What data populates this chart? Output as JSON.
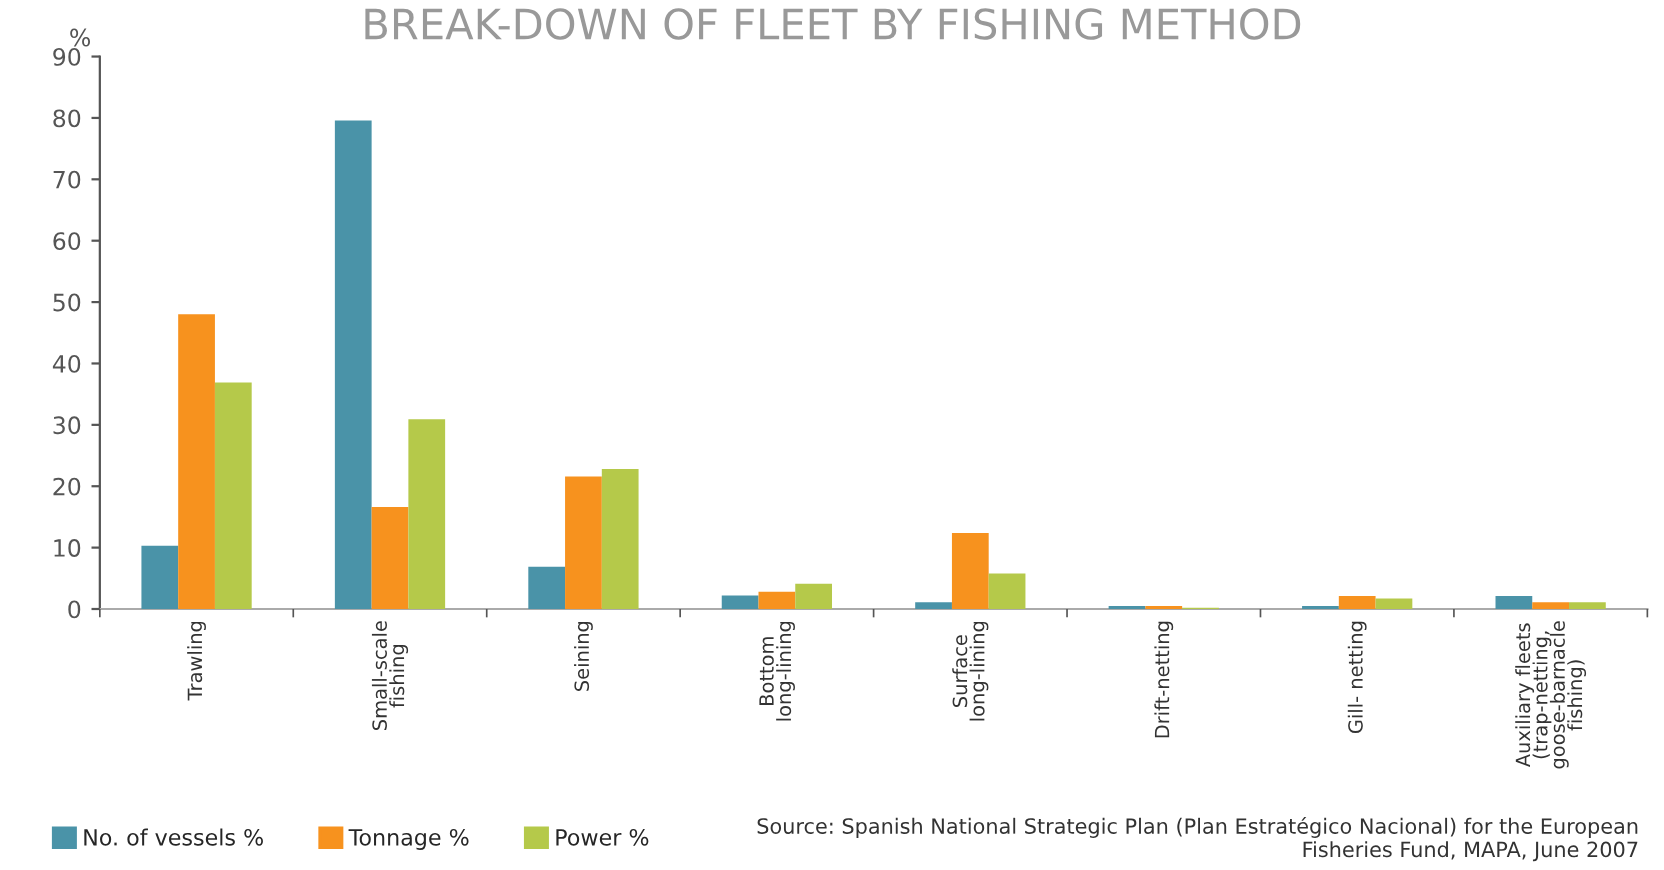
{
  "chart_data": {
    "type": "bar",
    "title": "BREAK-DOWN OF FLEET BY FISHING METHOD",
    "ylabel": "%",
    "categories": [
      "Trawling",
      "Small-scale\nfishing",
      "Seining",
      "Bottom\nlong-lining",
      "Surface\nlong-lining",
      "Drift-netting",
      "Gill- netting",
      "Auxiliary fleets\n(trap-netting,\ngoose-barnacle\nfishing)"
    ],
    "series": [
      {
        "name": "No. of vessels %",
        "color": "#4a93a8",
        "values": [
          10.3,
          79.6,
          6.9,
          2.2,
          1.1,
          0.5,
          0.5,
          2.1
        ]
      },
      {
        "name": "Tonnage %",
        "color": "#f7921e",
        "values": [
          48.0,
          16.6,
          21.6,
          2.8,
          12.4,
          0.5,
          2.1,
          1.1
        ]
      },
      {
        "name": "Power %",
        "color": "#b5c94a",
        "values": [
          36.9,
          30.9,
          22.8,
          4.1,
          5.8,
          0.2,
          1.7,
          1.1
        ]
      }
    ],
    "ylim": [
      0,
      90
    ],
    "yticks": [
      0,
      10,
      20,
      30,
      40,
      50,
      60,
      70,
      80,
      90
    ],
    "grid": false,
    "legend": "bottom left",
    "annotations": [
      "Source: Spanish National Strategic Plan (Plan Estratégico Nacional) for the European\nFisheries Fund, MAPA, June 2007"
    ]
  }
}
